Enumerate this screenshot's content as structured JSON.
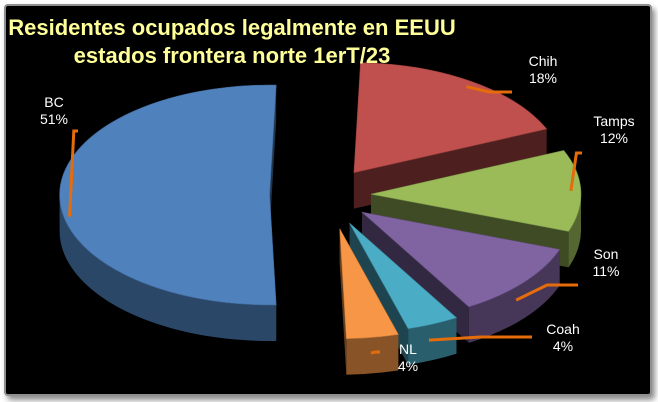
{
  "chart_data": {
    "type": "pie",
    "title_lines": [
      "Residentes ocupados legalmente en EEUU",
      "estados frontera norte 1erT/23"
    ],
    "slices": [
      {
        "label": "BC",
        "value": 51,
        "pct_label": "51%",
        "color": "#4f81bd"
      },
      {
        "label": "Chih",
        "value": 18,
        "pct_label": "18%",
        "color": "#c0504d"
      },
      {
        "label": "Tamps",
        "value": 12,
        "pct_label": "12%",
        "color": "#9bbb59"
      },
      {
        "label": "Son",
        "value": 11,
        "pct_label": "11%",
        "color": "#8064a2"
      },
      {
        "label": "Coah",
        "value": 4,
        "pct_label": "4%",
        "color": "#4bacc6"
      },
      {
        "label": "NL",
        "value": 4,
        "pct_label": "4%",
        "color": "#f79646"
      }
    ],
    "style": "3d-exploded",
    "leader_color": "#e46c0a",
    "background": "#000000",
    "title_color": "#ffff99"
  }
}
